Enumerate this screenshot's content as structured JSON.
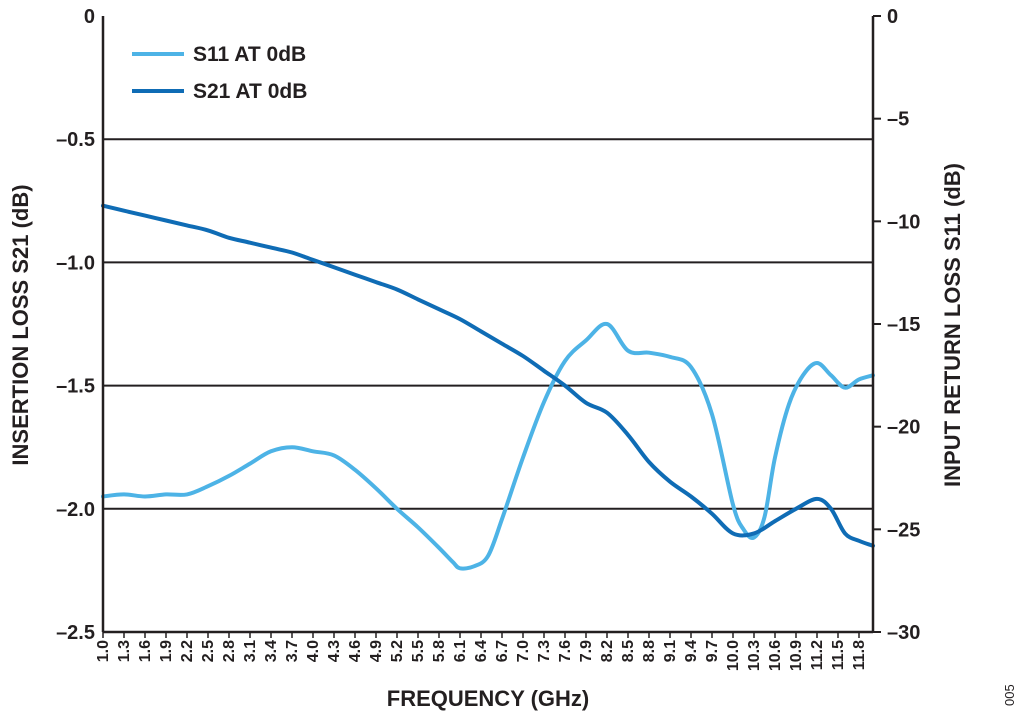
{
  "chart_data": {
    "type": "line",
    "xlabel": "FREQUENCY (GHz)",
    "ylabel_left": "INSERTION LOSS S21 (dB)",
    "ylabel_right": "INPUT RETURN LOSS S11 (dB)",
    "xlim": [
      1.0,
      12.0
    ],
    "ylim_left": [
      -2.5,
      0
    ],
    "ylim_right": [
      -30,
      0
    ],
    "left_ticks": [
      "0",
      "–0.5",
      "–1.0",
      "–1.5",
      "–2.0",
      "–2.5"
    ],
    "right_ticks": [
      "0",
      "–5",
      "–10",
      "–15",
      "–20",
      "–25",
      "–30"
    ],
    "x_tick_labels": [
      "1.0",
      "1.3",
      "1.6",
      "1.9",
      "2.2",
      "2.5",
      "2.8",
      "3.1",
      "3.4",
      "3.7",
      "4.0",
      "4.3",
      "4.6",
      "4.9",
      "5.2",
      "5.5",
      "5.8",
      "6.1",
      "6.4",
      "6.7",
      "7.0",
      "7.3",
      "7.6",
      "7.9",
      "8.2",
      "8.5",
      "8.8",
      "9.1",
      "9.4",
      "9.7",
      "10.0",
      "10.3",
      "10.6",
      "10.9",
      "11.2",
      "11.5",
      "11.8"
    ],
    "grid": "horizontal",
    "legend_position": "top-left",
    "figure_id": "005",
    "series": [
      {
        "name": "S11 AT 0dB",
        "axis": "right",
        "color": "#4db3e6",
        "x": [
          1.0,
          1.3,
          1.6,
          1.9,
          2.2,
          2.5,
          2.8,
          3.1,
          3.4,
          3.7,
          4.0,
          4.3,
          4.6,
          4.9,
          5.2,
          5.5,
          5.8,
          6.0,
          6.1,
          6.3,
          6.5,
          6.7,
          7.0,
          7.3,
          7.6,
          7.9,
          8.2,
          8.5,
          8.8,
          9.1,
          9.4,
          9.7,
          10.0,
          10.15,
          10.3,
          10.45,
          10.6,
          10.8,
          11.0,
          11.2,
          11.4,
          11.6,
          11.8,
          12.0
        ],
        "y": [
          -23.4,
          -23.3,
          -23.4,
          -23.3,
          -23.3,
          -22.9,
          -22.4,
          -21.8,
          -21.2,
          -21.0,
          -21.2,
          -21.4,
          -22.1,
          -23.0,
          -24.0,
          -24.9,
          -25.9,
          -26.6,
          -26.9,
          -26.8,
          -26.3,
          -24.5,
          -21.5,
          -18.8,
          -16.8,
          -15.8,
          -15.0,
          -16.3,
          -16.4,
          -16.6,
          -17.1,
          -19.4,
          -23.8,
          -25.0,
          -25.4,
          -24.4,
          -21.5,
          -18.9,
          -17.5,
          -16.9,
          -17.5,
          -18.1,
          -17.7,
          -17.5
        ]
      },
      {
        "name": "S21 AT 0dB",
        "axis": "left",
        "color": "#0f6cb5",
        "x": [
          1.0,
          1.3,
          1.6,
          1.9,
          2.2,
          2.5,
          2.8,
          3.1,
          3.4,
          3.7,
          4.0,
          4.3,
          4.6,
          4.9,
          5.2,
          5.5,
          5.8,
          6.1,
          6.4,
          6.7,
          7.0,
          7.3,
          7.6,
          7.9,
          8.2,
          8.5,
          8.8,
          9.1,
          9.4,
          9.7,
          10.0,
          10.3,
          10.6,
          10.9,
          11.2,
          11.4,
          11.6,
          11.8,
          12.0
        ],
        "y": [
          -0.77,
          -0.79,
          -0.81,
          -0.83,
          -0.85,
          -0.87,
          -0.9,
          -0.92,
          -0.94,
          -0.96,
          -0.99,
          -1.02,
          -1.05,
          -1.08,
          -1.11,
          -1.15,
          -1.19,
          -1.23,
          -1.28,
          -1.33,
          -1.38,
          -1.44,
          -1.5,
          -1.57,
          -1.61,
          -1.7,
          -1.81,
          -1.89,
          -1.95,
          -2.02,
          -2.1,
          -2.1,
          -2.05,
          -2.0,
          -1.96,
          -2.0,
          -2.1,
          -2.13,
          -2.15
        ]
      }
    ]
  }
}
